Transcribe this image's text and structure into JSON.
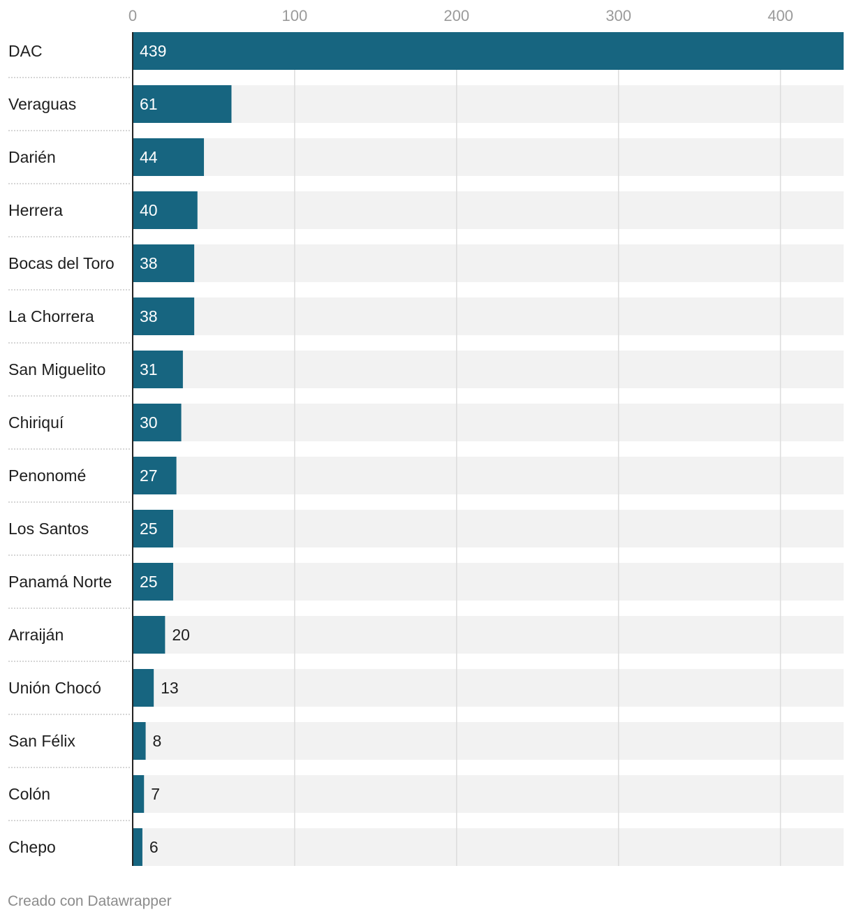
{
  "chart_data": {
    "type": "bar",
    "orientation": "horizontal",
    "categories": [
      "DAC",
      "Veraguas",
      "Darién",
      "Herrera",
      "Bocas del Toro",
      "La Chorrera",
      "San Miguelito",
      "Chiriquí",
      "Penonomé",
      "Los Santos",
      "Panamá Norte",
      "Arraiján",
      "Unión Chocó",
      "San Félix",
      "Colón",
      "Chepo"
    ],
    "values": [
      439,
      61,
      44,
      40,
      38,
      38,
      31,
      30,
      27,
      25,
      25,
      20,
      13,
      8,
      7,
      6
    ],
    "xlim": [
      0,
      439
    ],
    "xticks": [
      0,
      100,
      200,
      300,
      400
    ],
    "tick_position": "top",
    "grid": true,
    "colors": {
      "bar": "#176580",
      "track": "#f2f2f2",
      "grid": "#dcdcdc",
      "label": "#1e1e1e",
      "tick": "#9a9a9a",
      "value_inside": "#ffffff",
      "value_outside": "#1e1e1e"
    }
  },
  "footer": {
    "credit": "Creado con Datawrapper"
  }
}
